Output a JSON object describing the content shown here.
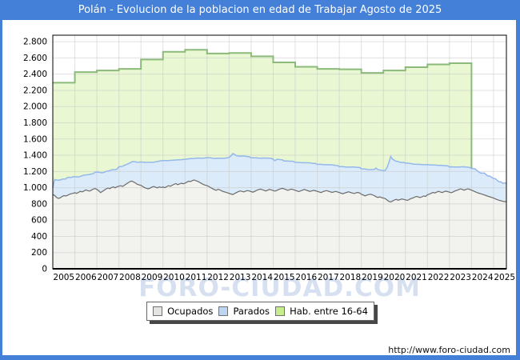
{
  "title": "Polán - Evolucion de la poblacion en edad de Trabajar Agosto de 2025",
  "watermark": {
    "text": "FORO-CIUDAD.COM"
  },
  "footer": {
    "url": "http://www.foro-ciudad.com"
  },
  "colors": {
    "frame_blue": "#4480d8",
    "grid": "#c8c8c8",
    "green_fill": "#e9f7d3",
    "green_line": "#8cba7a",
    "blue_fill": "#dcebf9",
    "blue_line": "#94b8ec",
    "gray_fill": "#f2f2ef",
    "gray_line": "#6b6b6b"
  },
  "legend": {
    "items": [
      {
        "label": "Ocupados",
        "fill": "#e4e4e2",
        "border": "#707070"
      },
      {
        "label": "Parados",
        "fill": "#bcd6f2",
        "border": "#707070"
      },
      {
        "label": "Hab. entre 16-64",
        "fill": "#c6ee8c",
        "border": "#707070"
      }
    ]
  },
  "chart_data": {
    "type": "area",
    "title": "Polán - Evolucion de la poblacion en edad de Trabajar Agosto de 2025",
    "xlabel": "",
    "ylabel": "",
    "ylim": [
      0,
      2880
    ],
    "ytick_step": 200,
    "ytick_labels": [
      "0",
      "200",
      "400",
      "600",
      "800",
      "1.000",
      "1.200",
      "1.400",
      "1.600",
      "1.800",
      "2.000",
      "2.200",
      "2.400",
      "2.600",
      "2.800"
    ],
    "xtick_labels": [
      "2005",
      "2006",
      "2007",
      "2008",
      "2009",
      "2010",
      "2011",
      "2012",
      "2013",
      "2014",
      "2015",
      "2016",
      "2017",
      "2018",
      "2019",
      "2020",
      "2021",
      "2022",
      "2023",
      "2024",
      "2025"
    ],
    "x_start_year": 2005,
    "x_end": 2025.5833,
    "grid": true,
    "legend_position": "bottom",
    "series": [
      {
        "name": "Hab. entre 16-64",
        "kind": "yearly_step",
        "start_year": 2005,
        "values": [
          2295,
          2425,
          2445,
          2465,
          2580,
          2675,
          2700,
          2655,
          2660,
          2620,
          2545,
          2490,
          2465,
          2460,
          2415,
          2445,
          2485,
          2520,
          2535
        ]
      },
      {
        "name": "Ocupados",
        "kind": "monthly",
        "start": "2005-01",
        "end": "2025-08",
        "values": [
          912,
          905,
          880,
          868,
          875,
          890,
          902,
          898,
          905,
          918,
          925,
          930,
          938,
          930,
          942,
          955,
          948,
          960,
          972,
          965,
          958,
          970,
          982,
          990,
          978,
          962,
          940,
          955,
          970,
          985,
          995,
          988,
          1002,
          1010,
          998,
          1012,
          1018,
          1025,
          1015,
          1030,
          1045,
          1060,
          1075,
          1082,
          1070,
          1058,
          1042,
          1035,
          1028,
          1015,
          1000,
          992,
          985,
          995,
          1008,
          1015,
          1005,
          998,
          1010,
          1002,
          1008,
          1000,
          1012,
          1025,
          1018,
          1030,
          1042,
          1050,
          1038,
          1045,
          1055,
          1048,
          1055,
          1068,
          1080,
          1075,
          1088,
          1095,
          1085,
          1078,
          1065,
          1052,
          1040,
          1032,
          1025,
          1015,
          1000,
          988,
          975,
          968,
          980,
          972,
          960,
          952,
          945,
          938,
          930,
          922,
          915,
          928,
          940,
          952,
          960,
          955,
          948,
          958,
          965,
          960,
          952,
          945,
          955,
          968,
          975,
          982,
          975,
          968,
          960,
          970,
          978,
          972,
          965,
          958,
          968,
          978,
          985,
          992,
          985,
          975,
          968,
          975,
          982,
          975,
          968,
          960,
          952,
          962,
          970,
          978,
          970,
          962,
          955,
          960,
          968,
          962,
          955,
          948,
          940,
          950,
          958,
          965,
          958,
          950,
          942,
          948,
          955,
          948,
          940,
          932,
          925,
          935,
          942,
          950,
          942,
          935,
          928,
          935,
          942,
          935,
          918,
          910,
          900,
          908,
          915,
          920,
          912,
          902,
          890,
          880,
          888,
          878,
          872,
          865,
          848,
          830,
          824,
          836,
          848,
          856,
          846,
          852,
          860,
          856,
          850,
          843,
          853,
          866,
          873,
          883,
          893,
          886,
          878,
          888,
          898,
          893,
          912,
          920,
          930,
          942,
          935,
          945,
          955,
          948,
          940,
          950,
          958,
          952,
          945,
          938,
          948,
          960,
          968,
          975,
          985,
          978,
          970,
          978,
          985,
          978,
          970,
          960,
          950,
          940,
          932,
          925,
          918,
          910,
          902,
          895,
          888,
          880,
          872,
          862,
          852,
          845,
          838,
          832,
          828,
          830
        ]
      },
      {
        "name": "Parados",
        "kind": "monthly_stacked_on_ocupados",
        "start": "2005-01",
        "end": "2025-08",
        "values": [
          85,
          195,
          215,
          225,
          220,
          215,
          205,
          210,
          220,
          210,
          200,
          205,
          195,
          205,
          190,
          185,
          200,
          195,
          185,
          195,
          205,
          200,
          190,
          200,
          215,
          230,
          245,
          230,
          220,
          215,
          210,
          222,
          218,
          212,
          225,
          218,
          240,
          235,
          250,
          245,
          240,
          235,
          230,
          238,
          252,
          262,
          270,
          280,
          290,
          300,
          315,
          320,
          328,
          318,
          305,
          300,
          315,
          325,
          318,
          330,
          325,
          335,
          320,
          310,
          318,
          308,
          298,
          290,
          305,
          298,
          290,
          300,
          295,
          285,
          275,
          285,
          272,
          265,
          278,
          288,
          300,
          312,
          325,
          335,
          345,
          355,
          368,
          375,
          385,
          395,
          382,
          390,
          402,
          412,
          420,
          430,
          445,
          470,
          505,
          480,
          455,
          440,
          428,
          435,
          442,
          430,
          418,
          422,
          415,
          425,
          412,
          400,
          390,
          382,
          390,
          398,
          405,
          395,
          385,
          390,
          385,
          375,
          382,
          370,
          360,
          352,
          345,
          355,
          362,
          352,
          345,
          350,
          345,
          352,
          360,
          348,
          338,
          330,
          338,
          345,
          352,
          342,
          332,
          338,
          332,
          340,
          348,
          335,
          325,
          318,
          325,
          332,
          340,
          330,
          320,
          325,
          320,
          328,
          335,
          322,
          312,
          305,
          312,
          320,
          328,
          318,
          308,
          315,
          315,
          322,
          330,
          318,
          308,
          302,
          312,
          322,
          352,
          342,
          330,
          338,
          338,
          348,
          402,
          478,
          562,
          515,
          490,
          470,
          478,
          462,
          450,
          458,
          452,
          462,
          447,
          432,
          419,
          407,
          395,
          402,
          409,
          397,
          385,
          392,
          372,
          362,
          350,
          338,
          345,
          332,
          320,
          328,
          335,
          322,
          312,
          318,
          312,
          320,
          308,
          296,
          288,
          280,
          272,
          280,
          288,
          276,
          268,
          272,
          268,
          275,
          282,
          270,
          262,
          255,
          262,
          270,
          258,
          248,
          255,
          248,
          242,
          250,
          238,
          228,
          235,
          222,
          230,
          225
        ]
      }
    ]
  }
}
